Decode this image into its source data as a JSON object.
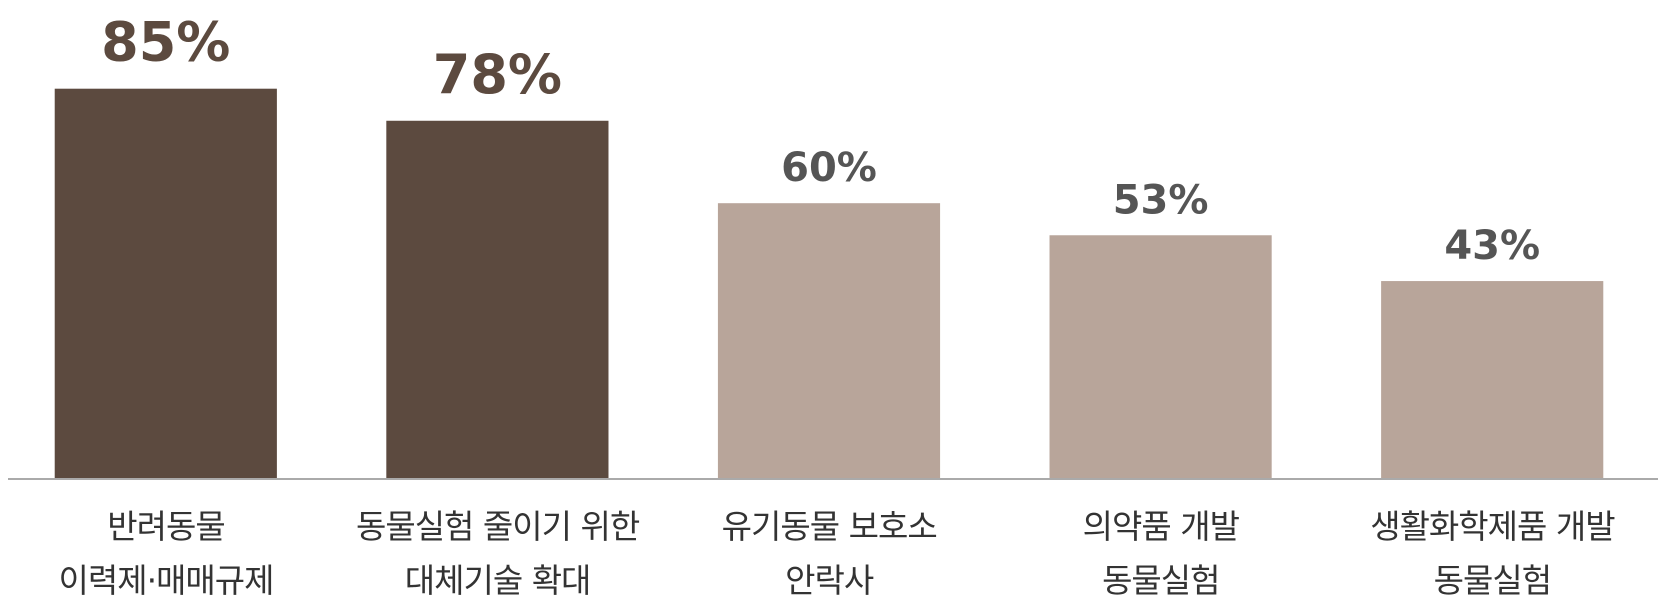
{
  "chart_data": {
    "type": "bar",
    "categories": [
      "반려동물\n이력제·매매규제",
      "동물실험 줄이기 위한\n대체기술 확대",
      "유기동물 보호소\n안락사",
      "의약품 개발\n동물실험",
      "생활화학제품 개발\n동물실험"
    ],
    "values": [
      85,
      78,
      60,
      53,
      43
    ],
    "value_labels": [
      "85%",
      "78%",
      "60%",
      "53%",
      "43%"
    ],
    "colors": [
      "#5c4a3f",
      "#5c4a3f",
      "#b8a59a",
      "#b8a59a",
      "#b8a59a"
    ],
    "label_colors": [
      "#5c4a3f",
      "#5c4a3f",
      "#555555",
      "#555555",
      "#555555"
    ],
    "ylim": [
      0,
      100
    ]
  }
}
